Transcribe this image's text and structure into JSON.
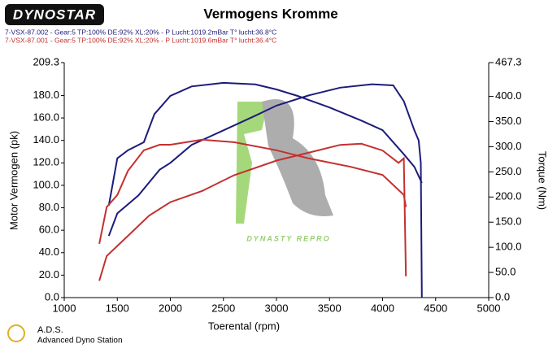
{
  "chart_data": {
    "type": "line",
    "title": "Vermogens Kromme",
    "x_label": "Toerental (rpm)",
    "y_label": "Motor Vermogen (pk)",
    "y2_label": "Torque (Nm)",
    "xlim": [
      1000,
      5000
    ],
    "xticks": [
      1000,
      1500,
      2000,
      2500,
      3000,
      3500,
      4000,
      4500,
      5000
    ],
    "ylim": [
      0,
      209.3
    ],
    "yticks": [
      {
        "value": 0,
        "label": "0.0"
      },
      {
        "value": 20,
        "label": "20.0"
      },
      {
        "value": 40,
        "label": "40.0"
      },
      {
        "value": 60,
        "label": "60.0"
      },
      {
        "value": 80,
        "label": "80.0"
      },
      {
        "value": 100,
        "label": "100.0"
      },
      {
        "value": 120,
        "label": "120.0"
      },
      {
        "value": 140,
        "label": "140.0"
      },
      {
        "value": 160,
        "label": "160.0"
      },
      {
        "value": 180,
        "label": "180.0"
      },
      209.3
    ],
    "y2lim": [
      0,
      467.3
    ],
    "y2ticks": [
      {
        "value": 0,
        "label": "0.0"
      },
      {
        "value": 50,
        "label": "50.0"
      },
      {
        "value": 100,
        "label": "100.0"
      },
      {
        "value": 150,
        "label": "150.0"
      },
      {
        "value": 200,
        "label": "200.0"
      },
      {
        "value": 250,
        "label": "250.0"
      },
      {
        "value": 300,
        "label": "300.0"
      },
      {
        "value": 350,
        "label": "350.0"
      },
      {
        "value": 400,
        "label": "400.0"
      },
      467.3
    ],
    "series": [
      {
        "name": "7-VSX-87.002 - Gear:5 TP:100% DE:92% XL:20%   - P Lucht:1019.2mBar T° lucht:36.8°C",
        "color": "#1c1c7a",
        "x": [
          1420,
          1500,
          1700,
          1900,
          2000,
          2200,
          2500,
          2800,
          3000,
          3300,
          3600,
          3900,
          4100,
          4200,
          4300,
          4340,
          4360,
          4370
        ],
        "values": [
          55,
          75,
          91,
          114,
          120,
          136,
          149,
          162,
          171,
          180,
          187,
          190,
          189,
          175,
          149,
          140,
          120,
          0
        ]
      },
      {
        "color": "#1c1c7a",
        "axis": "y2",
        "x": [
          1420,
          1500,
          1600,
          1750,
          1850,
          2000,
          2200,
          2500,
          2800,
          3000,
          3200,
          3500,
          3800,
          4000,
          4200,
          4300,
          4370
        ],
        "values": [
          183,
          277,
          293,
          309,
          365,
          401,
          420,
          427,
          424,
          414,
          401,
          378,
          352,
          333,
          285,
          260,
          228
        ]
      },
      {
        "name": "7-VSX-87.001 - Gear:5 TP:100% DE:92% XL:20%   - P Lucht:1019.6mBar T° lucht:36.4°C",
        "color": "#c43030",
        "x": [
          1330,
          1400,
          1600,
          1800,
          2000,
          2300,
          2600,
          3000,
          3300,
          3600,
          3800,
          4000,
          4150,
          4200,
          4220
        ],
        "values": [
          15,
          37,
          55,
          73,
          85,
          95,
          109,
          122,
          129,
          136,
          137,
          131,
          120,
          124,
          19
        ]
      },
      {
        "color": "#c43030",
        "axis": "y2",
        "x": [
          1330,
          1400,
          1500,
          1600,
          1750,
          1900,
          2000,
          2300,
          2600,
          3000,
          3300,
          3700,
          4000,
          4200,
          4220
        ],
        "values": [
          107,
          180,
          204,
          252,
          293,
          304,
          304,
          314,
          309,
          293,
          277,
          260,
          244,
          204,
          180
        ]
      }
    ]
  },
  "branding": {
    "logo": "DYNOSTAR",
    "watermark": "DYNASTY REPRO",
    "footer_short": "A.D.S.",
    "footer_long": "Advanced Dyno Station"
  }
}
